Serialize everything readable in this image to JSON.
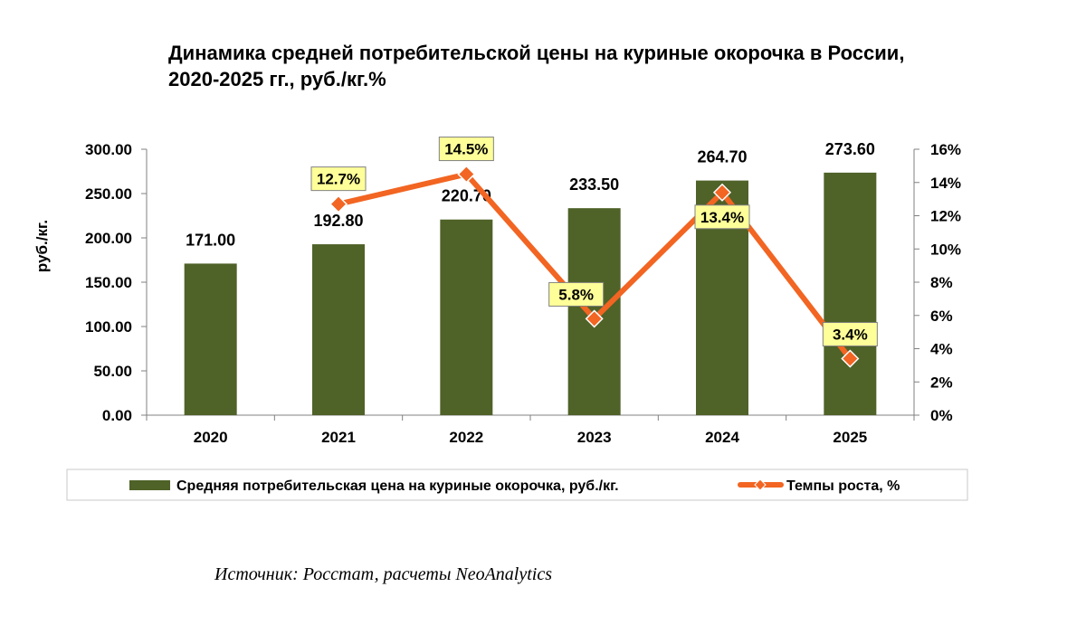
{
  "chart_data": {
    "type": "bar",
    "title_line1": "Динамика средней потребительской цены на куриные окорочка в России,",
    "title_line2": "2020-2025 гг., руб./кг.%",
    "categories": [
      "2020",
      "2021",
      "2022",
      "2023",
      "2024",
      "2025"
    ],
    "series": [
      {
        "name": "Средняя потребительская цена на куриные окорочка, руб./кг.",
        "type": "bar",
        "axis": "left",
        "values": [
          171.0,
          192.8,
          220.7,
          233.5,
          264.7,
          273.6
        ],
        "labels": [
          "171.00",
          "192.80",
          "220.70",
          "233.50",
          "264.70",
          "273.60"
        ],
        "color": "#4f6228"
      },
      {
        "name": "Темпы роста, %",
        "type": "line",
        "axis": "right",
        "x": [
          "2021",
          "2022",
          "2023",
          "2024",
          "2025"
        ],
        "values": [
          12.7,
          14.5,
          5.8,
          13.4,
          3.4
        ],
        "labels": [
          "12.7%",
          "14.5%",
          "5.8%",
          "13.4%",
          "3.4%"
        ],
        "color": "#f26522",
        "marker_color": "#f26522",
        "label_bg": "#ffff99"
      }
    ],
    "ylabel": "руб./кг.",
    "ylim": [
      0,
      300
    ],
    "y_ticks": [
      "0.00",
      "50.00",
      "100.00",
      "150.00",
      "200.00",
      "250.00",
      "300.00"
    ],
    "y2lim": [
      0,
      16
    ],
    "y2_ticks": [
      "0%",
      "2%",
      "4%",
      "6%",
      "8%",
      "10%",
      "12%",
      "14%",
      "16%"
    ],
    "grid": false,
    "legend": "bottom"
  },
  "source": "Источник: Росстат, расчеты NeoAnalytics"
}
